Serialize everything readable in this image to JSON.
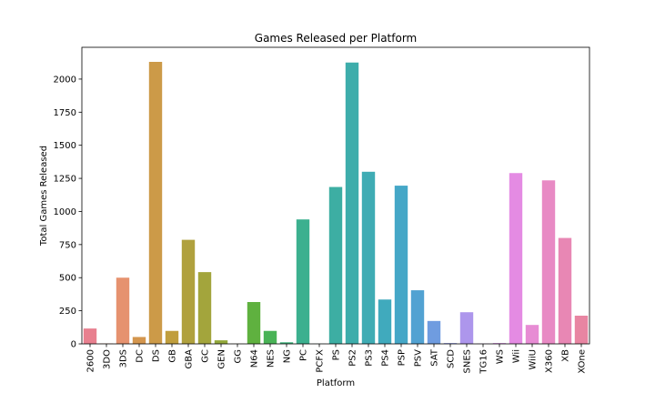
{
  "chart_data": {
    "type": "bar",
    "title": "Games Released per Platform",
    "xlabel": "Platform",
    "ylabel": "Total Games Released",
    "ylim": [
      0,
      2240
    ],
    "yticks": [
      0,
      250,
      500,
      750,
      1000,
      1250,
      1500,
      1750,
      2000
    ],
    "grid": false,
    "categories": [
      "2600",
      "3DO",
      "3DS",
      "DC",
      "DS",
      "GB",
      "GBA",
      "GC",
      "GEN",
      "GG",
      "N64",
      "NES",
      "NG",
      "PC",
      "PCFX",
      "PS",
      "PS2",
      "PS3",
      "PS4",
      "PSP",
      "PSV",
      "SAT",
      "SCD",
      "SNES",
      "TG16",
      "WS",
      "Wii",
      "WiiU",
      "X360",
      "XB",
      "XOne"
    ],
    "values": [
      116,
      3,
      500,
      52,
      2130,
      98,
      786,
      542,
      27,
      1,
      316,
      98,
      12,
      940,
      1,
      1185,
      2125,
      1300,
      335,
      1195,
      405,
      173,
      6,
      239,
      2,
      6,
      1290,
      143,
      1235,
      800,
      213
    ],
    "colors": [
      "#e8808f",
      "#e38a6a",
      "#e6926f",
      "#d4964e",
      "#cc9a48",
      "#c09e3d",
      "#b0a13e",
      "#a3a53c",
      "#93a83b",
      "#7fab3e",
      "#5fb13f",
      "#49b356",
      "#3fb27c",
      "#3cb08f",
      "#3caf98",
      "#3daea3",
      "#3eadab",
      "#3facb4",
      "#40aabd",
      "#45a7c7",
      "#52a2d2",
      "#6f9ce0",
      "#9098e8",
      "#ad96ec",
      "#c691ea",
      "#d88de6",
      "#e48be3",
      "#e78cd4",
      "#e88ac4",
      "#e887b4",
      "#e885a2"
    ]
  }
}
